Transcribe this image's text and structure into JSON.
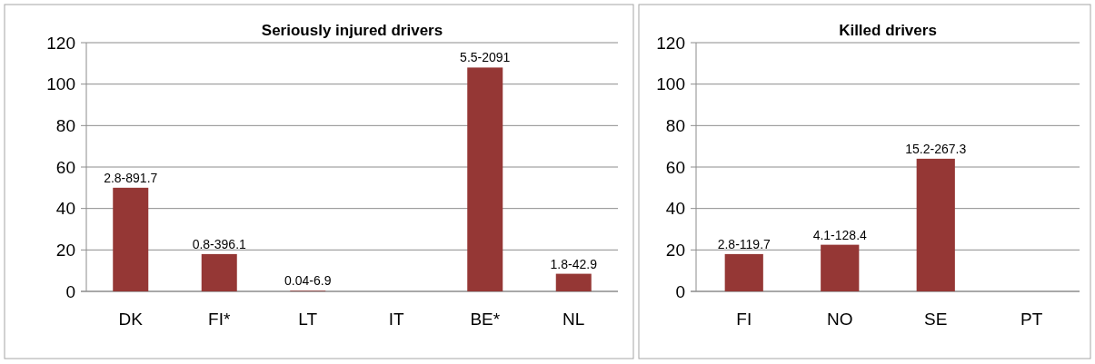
{
  "chart_data": [
    {
      "type": "bar",
      "title": "Seriously injured drivers",
      "categories": [
        "DK",
        "FI*",
        "LT",
        "IT",
        "BE*",
        "NL"
      ],
      "values": [
        50,
        18,
        0.3,
        null,
        108,
        8.5
      ],
      "color": "#953735",
      "value_labels": [
        "2.8-891.7",
        "0.8-396.1",
        "0.04-6.9",
        null,
        "5.5-2091",
        "1.8-42.9"
      ],
      "ylim": [
        0,
        120
      ],
      "yticks": [
        0,
        20,
        40,
        60,
        80,
        100,
        120
      ],
      "grid": "y"
    },
    {
      "type": "bar",
      "title": "Killed drivers",
      "categories": [
        "FI",
        "NO",
        "SE",
        "PT"
      ],
      "values": [
        18,
        22.5,
        64,
        null
      ],
      "color": "#953735",
      "value_labels": [
        "2.8-119.7",
        "4.1-128.4",
        "15.2-267.3",
        null
      ],
      "ylim": [
        0,
        120
      ],
      "yticks": [
        0,
        20,
        40,
        60,
        80,
        100,
        120
      ],
      "grid": "y"
    }
  ]
}
